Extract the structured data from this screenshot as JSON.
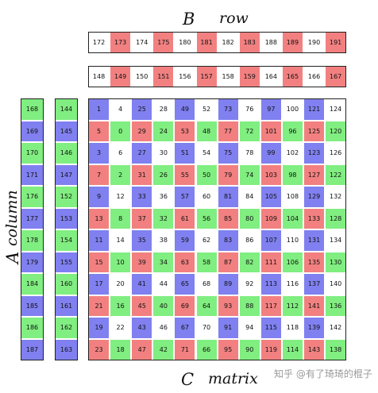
{
  "labels": {
    "b": "B",
    "row": "row",
    "a": "A",
    "column": "column",
    "c": "C",
    "matrix": "matrix"
  },
  "watermark": "知乎 @有了琦琦的棍子",
  "colors": {
    "R": "#f28080",
    "G": "#80ee80",
    "B": "#8080f0",
    "W": "#ffffff"
  },
  "b_rows": [
    {
      "values": [
        172,
        173,
        174,
        175,
        180,
        181,
        182,
        183,
        188,
        189,
        190,
        191
      ],
      "colors": [
        "W",
        "R",
        "W",
        "R",
        "W",
        "R",
        "W",
        "R",
        "W",
        "R",
        "W",
        "R"
      ]
    },
    {
      "values": [
        148,
        149,
        150,
        151,
        156,
        157,
        158,
        159,
        164,
        165,
        166,
        167
      ],
      "colors": [
        "W",
        "R",
        "W",
        "R",
        "W",
        "R",
        "W",
        "R",
        "W",
        "R",
        "W",
        "R"
      ]
    }
  ],
  "a_columns": [
    {
      "values": [
        168,
        169,
        170,
        171,
        176,
        177,
        178,
        179,
        184,
        185,
        186,
        187
      ],
      "colors": [
        "G",
        "B",
        "G",
        "B",
        "G",
        "B",
        "G",
        "B",
        "G",
        "B",
        "G",
        "B"
      ]
    },
    {
      "values": [
        144,
        145,
        146,
        147,
        152,
        153,
        154,
        155,
        160,
        161,
        162,
        163
      ],
      "colors": [
        "G",
        "B",
        "G",
        "B",
        "G",
        "B",
        "G",
        "B",
        "G",
        "B",
        "G",
        "B"
      ]
    }
  ],
  "c_matrix": {
    "values": [
      [
        1,
        4,
        25,
        28,
        49,
        52,
        73,
        76,
        97,
        100,
        121,
        124
      ],
      [
        5,
        0,
        29,
        24,
        53,
        48,
        77,
        72,
        101,
        96,
        125,
        120
      ],
      [
        3,
        6,
        27,
        30,
        51,
        54,
        75,
        78,
        99,
        102,
        123,
        126
      ],
      [
        7,
        2,
        31,
        26,
        55,
        50,
        79,
        74,
        103,
        98,
        127,
        122
      ],
      [
        9,
        12,
        33,
        36,
        57,
        60,
        81,
        84,
        105,
        108,
        129,
        132
      ],
      [
        13,
        8,
        37,
        32,
        61,
        56,
        85,
        80,
        109,
        104,
        133,
        128
      ],
      [
        11,
        14,
        35,
        38,
        59,
        62,
        83,
        86,
        107,
        110,
        131,
        134
      ],
      [
        15,
        10,
        39,
        34,
        63,
        58,
        87,
        82,
        111,
        106,
        135,
        130
      ],
      [
        17,
        20,
        41,
        44,
        65,
        68,
        89,
        92,
        113,
        116,
        137,
        140
      ],
      [
        21,
        16,
        45,
        40,
        69,
        64,
        93,
        88,
        117,
        112,
        141,
        136
      ],
      [
        19,
        22,
        43,
        46,
        67,
        70,
        91,
        94,
        115,
        118,
        139,
        142
      ],
      [
        23,
        18,
        47,
        42,
        71,
        66,
        95,
        90,
        119,
        114,
        143,
        138
      ]
    ],
    "colors": [
      [
        "B",
        "W",
        "B",
        "W",
        "B",
        "W",
        "B",
        "W",
        "B",
        "W",
        "B",
        "W"
      ],
      [
        "R",
        "G",
        "R",
        "G",
        "R",
        "G",
        "R",
        "G",
        "R",
        "G",
        "R",
        "G"
      ],
      [
        "B",
        "W",
        "B",
        "W",
        "B",
        "W",
        "B",
        "W",
        "B",
        "W",
        "B",
        "W"
      ],
      [
        "R",
        "G",
        "R",
        "G",
        "R",
        "G",
        "R",
        "G",
        "R",
        "G",
        "R",
        "G"
      ],
      [
        "B",
        "W",
        "B",
        "W",
        "B",
        "W",
        "B",
        "W",
        "B",
        "W",
        "B",
        "W"
      ],
      [
        "R",
        "G",
        "R",
        "G",
        "R",
        "G",
        "R",
        "G",
        "R",
        "G",
        "R",
        "G"
      ],
      [
        "B",
        "W",
        "B",
        "W",
        "B",
        "W",
        "B",
        "W",
        "B",
        "W",
        "B",
        "W"
      ],
      [
        "R",
        "G",
        "R",
        "G",
        "R",
        "G",
        "R",
        "G",
        "R",
        "G",
        "R",
        "G"
      ],
      [
        "B",
        "W",
        "B",
        "W",
        "B",
        "W",
        "B",
        "W",
        "B",
        "W",
        "B",
        "W"
      ],
      [
        "R",
        "G",
        "R",
        "G",
        "R",
        "G",
        "R",
        "G",
        "R",
        "G",
        "R",
        "G"
      ],
      [
        "B",
        "W",
        "B",
        "W",
        "B",
        "W",
        "B",
        "W",
        "B",
        "W",
        "B",
        "W"
      ],
      [
        "R",
        "G",
        "R",
        "G",
        "R",
        "G",
        "R",
        "G",
        "R",
        "G",
        "R",
        "G"
      ]
    ]
  }
}
